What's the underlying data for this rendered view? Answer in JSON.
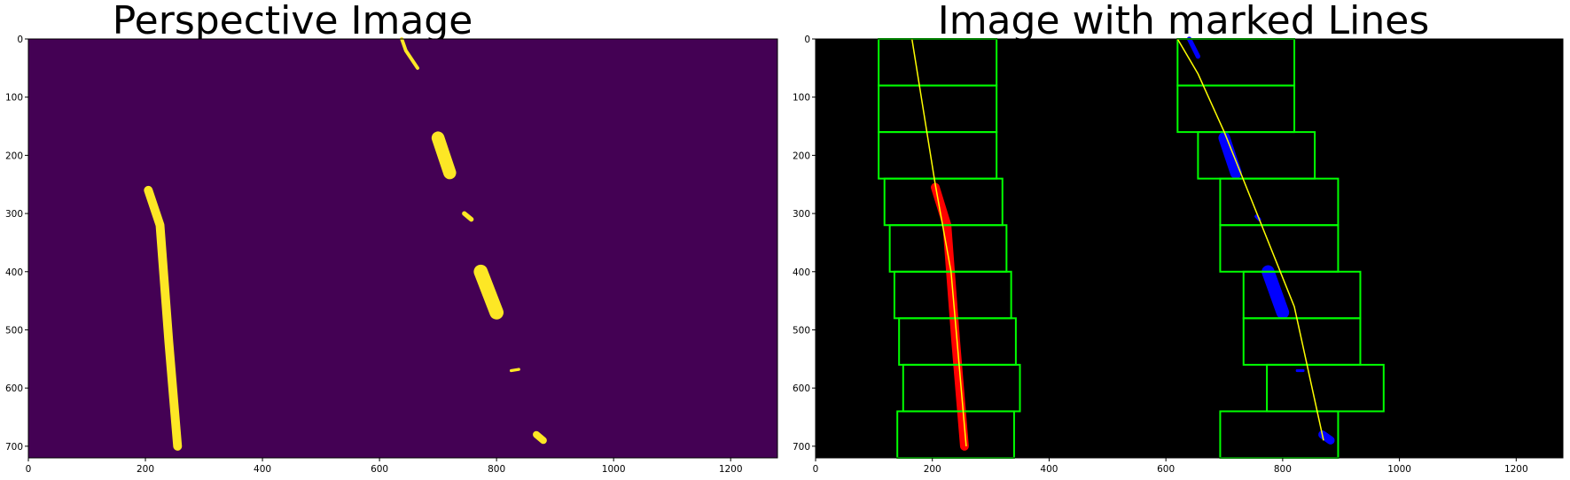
{
  "chart_data": [
    {
      "type": "heatmap",
      "title": "Perspective Image",
      "xlim": [
        0,
        1280
      ],
      "ylim": [
        720,
        0
      ],
      "x_ticks": [
        0,
        200,
        400,
        600,
        800,
        1000,
        1200
      ],
      "y_ticks": [
        0,
        100,
        200,
        300,
        400,
        500,
        600,
        700
      ],
      "colors": {
        "background": "#440154",
        "pixels": "#fde725"
      },
      "blobs": [
        {
          "name": "left-lane-line",
          "points": [
            [
              205,
              260
            ],
            [
              225,
              320
            ],
            [
              240,
              520
            ],
            [
              255,
              700
            ]
          ],
          "width": 15
        },
        {
          "name": "right-dash-top",
          "points": [
            [
              638,
              0
            ],
            [
              645,
              20
            ],
            [
              665,
              50
            ]
          ],
          "width": 6
        },
        {
          "name": "right-dash-200",
          "points": [
            [
              700,
              170
            ],
            [
              720,
              230
            ]
          ],
          "width": 22
        },
        {
          "name": "right-dash-300",
          "points": [
            [
              745,
              300
            ],
            [
              757,
              310
            ]
          ],
          "width": 8
        },
        {
          "name": "right-dash-400",
          "points": [
            [
              773,
              400
            ],
            [
              800,
              470
            ]
          ],
          "width": 24
        },
        {
          "name": "right-dash-570",
          "points": [
            [
              825,
              570
            ],
            [
              838,
              568
            ]
          ],
          "width": 5
        },
        {
          "name": "right-dash-690",
          "points": [
            [
              868,
              680
            ],
            [
              880,
              690
            ]
          ],
          "width": 12
        }
      ]
    },
    {
      "type": "scatter",
      "title": "Image with marked Lines",
      "xlim": [
        0,
        1280
      ],
      "ylim": [
        720,
        0
      ],
      "x_ticks": [
        0,
        200,
        400,
        600,
        800,
        1000,
        1200
      ],
      "y_ticks": [
        0,
        100,
        200,
        300,
        400,
        500,
        600,
        700
      ],
      "colors": {
        "background": "#000000",
        "windows": "#00ff00",
        "left_pixels": "#ff0000",
        "right_pixels": "#0000ff",
        "fit": "#ffff00"
      },
      "left_windows": [
        [
          108,
          310,
          0,
          80
        ],
        [
          108,
          310,
          80,
          160
        ],
        [
          108,
          310,
          160,
          240
        ],
        [
          118,
          320,
          240,
          320
        ],
        [
          127,
          327,
          320,
          400
        ],
        [
          135,
          335,
          400,
          480
        ],
        [
          143,
          343,
          480,
          560
        ],
        [
          150,
          350,
          560,
          640
        ],
        [
          140,
          340,
          640,
          720
        ]
      ],
      "right_windows": [
        [
          620,
          820,
          0,
          80
        ],
        [
          620,
          820,
          80,
          160
        ],
        [
          655,
          855,
          160,
          240
        ],
        [
          693,
          895,
          240,
          320
        ],
        [
          693,
          895,
          320,
          400
        ],
        [
          733,
          933,
          400,
          480
        ],
        [
          733,
          933,
          480,
          560
        ],
        [
          773,
          973,
          560,
          640
        ],
        [
          693,
          895,
          640,
          720
        ]
      ],
      "left_pixel_blobs": [
        {
          "points": [
            [
              205,
              255
            ],
            [
              225,
              320
            ],
            [
              240,
              520
            ],
            [
              255,
              700
            ]
          ],
          "width": 15
        }
      ],
      "right_pixel_blobs": [
        {
          "points": [
            [
              640,
              0
            ],
            [
              655,
              30
            ]
          ],
          "width": 8
        },
        {
          "points": [
            [
              700,
              170
            ],
            [
              720,
              230
            ]
          ],
          "width": 20
        },
        {
          "points": [
            [
              755,
              305
            ],
            [
              760,
              310
            ]
          ],
          "width": 6
        },
        {
          "points": [
            [
              775,
              400
            ],
            [
              800,
              470
            ]
          ],
          "width": 22
        },
        {
          "points": [
            [
              825,
              570
            ],
            [
              835,
              570
            ]
          ],
          "width": 5
        },
        {
          "points": [
            [
              868,
              680
            ],
            [
              882,
              690
            ]
          ],
          "width": 14
        }
      ],
      "left_fit": [
        [
          165,
          0
        ],
        [
          205,
          250
        ],
        [
          232,
          400
        ],
        [
          258,
          700
        ]
      ],
      "right_fit": [
        [
          620,
          0
        ],
        [
          655,
          60
        ],
        [
          700,
          160
        ],
        [
          820,
          460
        ],
        [
          870,
          690
        ]
      ]
    }
  ]
}
